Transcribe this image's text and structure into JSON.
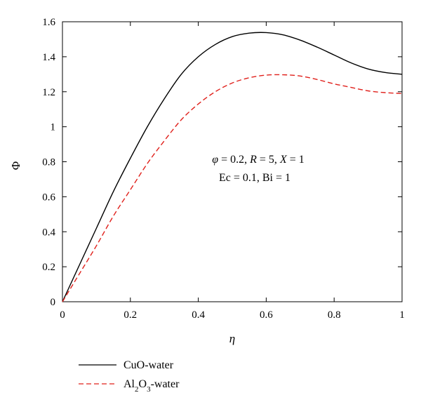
{
  "chart_data": {
    "type": "line",
    "xlabel": "η",
    "ylabel": "Φ",
    "xlim": [
      0,
      1
    ],
    "ylim": [
      0,
      1.6
    ],
    "xticks": [
      0,
      0.2,
      0.4,
      0.6,
      0.8,
      1
    ],
    "xtick_labels": [
      "0",
      "0.2",
      "0.4",
      "0.6",
      "0.8",
      "1"
    ],
    "yticks": [
      0,
      0.2,
      0.4,
      0.6,
      0.8,
      1.0,
      1.2,
      1.4,
      1.6
    ],
    "ytick_labels": [
      "0",
      "0.2",
      "0.4",
      "0.6",
      "0.8",
      "1",
      "1.2",
      "1.4",
      "1.6"
    ],
    "grid": false,
    "legend_position": "bottom-left, below plot",
    "annotations": {
      "line1": {
        "phi_sym": "φ",
        "phi_val": " = 0.2, ",
        "r_sym": "R",
        "r_val": " = 5, ",
        "x_sym": "X",
        "x_val": " = 1"
      },
      "line2": "Ec = 0.1, Bi = 1"
    },
    "series": [
      {
        "name": "CuO-water",
        "legend_main": "CuO-water",
        "color": "#000000",
        "dash": "solid",
        "x": [
          0,
          0.05,
          0.1,
          0.15,
          0.2,
          0.25,
          0.3,
          0.35,
          0.4,
          0.45,
          0.5,
          0.55,
          0.6,
          0.65,
          0.7,
          0.75,
          0.8,
          0.85,
          0.9,
          0.95,
          1.0
        ],
        "y": [
          0,
          0.21,
          0.42,
          0.63,
          0.82,
          1.0,
          1.16,
          1.3,
          1.4,
          1.47,
          1.515,
          1.535,
          1.538,
          1.525,
          1.495,
          1.455,
          1.41,
          1.365,
          1.33,
          1.31,
          1.3
        ]
      },
      {
        "name": "Al2O3-water",
        "legend_prefix": "Al",
        "legend_sub1": "2",
        "legend_mid": "O",
        "legend_sub2": "3",
        "legend_suffix": "-water",
        "color": "#e0201b",
        "dash": "dashed",
        "x": [
          0,
          0.05,
          0.1,
          0.15,
          0.2,
          0.25,
          0.3,
          0.35,
          0.4,
          0.45,
          0.5,
          0.55,
          0.6,
          0.65,
          0.7,
          0.75,
          0.8,
          0.85,
          0.9,
          0.95,
          1.0
        ],
        "y": [
          0,
          0.16,
          0.32,
          0.49,
          0.64,
          0.79,
          0.92,
          1.04,
          1.13,
          1.2,
          1.25,
          1.28,
          1.295,
          1.297,
          1.29,
          1.27,
          1.245,
          1.225,
          1.205,
          1.195,
          1.19
        ]
      }
    ]
  }
}
